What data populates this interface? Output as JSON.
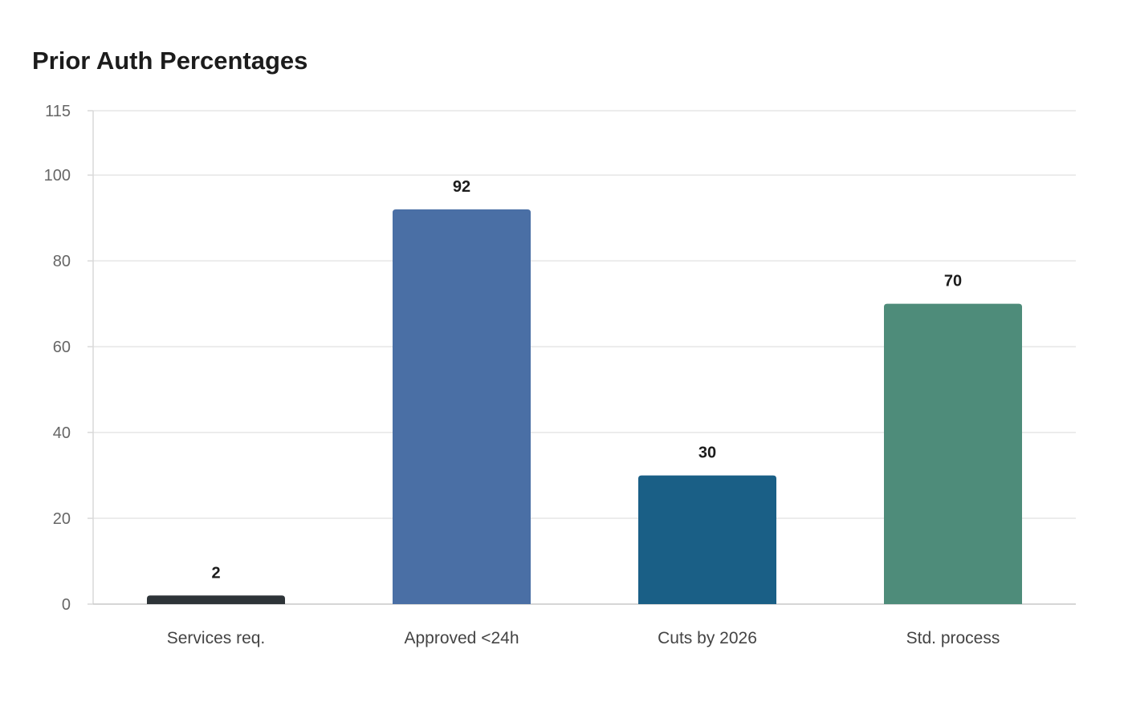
{
  "chart_data": {
    "type": "bar",
    "title": "Prior Auth Percentages",
    "xlabel": "",
    "ylabel": "",
    "categories": [
      "Services req.",
      "Approved <24h",
      "Cuts by 2026",
      "Std. process"
    ],
    "values": [
      2,
      92,
      30,
      70
    ],
    "value_labels": [
      "2",
      "92",
      "30",
      "70"
    ],
    "colors": [
      "#2e3438",
      "#4a6fa5",
      "#1a5f86",
      "#4e8c7a"
    ],
    "ylim": [
      0,
      115
    ],
    "yticks": [
      0,
      20,
      40,
      60,
      80,
      100,
      115
    ],
    "grid": true,
    "legend": "none"
  }
}
